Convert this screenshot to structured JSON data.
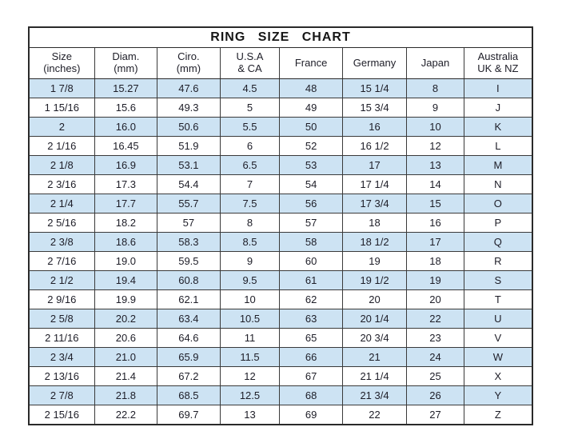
{
  "colors": {
    "row_highlight": "#cde3f3",
    "row_plain": "#ffffff",
    "border": "#2a2a2a",
    "text": "#1d1d27"
  },
  "chart_data": {
    "type": "table",
    "title": "RING SIZE CHART",
    "columns": [
      {
        "label": "Size",
        "sublabel": "(inches)"
      },
      {
        "label": "Diam.",
        "sublabel": "(mm)"
      },
      {
        "label": "Ciro.",
        "sublabel": "(mm)"
      },
      {
        "label": "U.S.A",
        "sublabel": "& CA"
      },
      {
        "label": "France",
        "sublabel": ""
      },
      {
        "label": "Germany",
        "sublabel": ""
      },
      {
        "label": "Japan",
        "sublabel": ""
      },
      {
        "label": "Australia",
        "sublabel": "UK & NZ"
      }
    ],
    "rows": [
      [
        "1 7/8",
        "15.27",
        "47.6",
        "4.5",
        "48",
        "15 1/4",
        "8",
        "I"
      ],
      [
        "1 15/16",
        "15.6",
        "49.3",
        "5",
        "49",
        "15 3/4",
        "9",
        "J"
      ],
      [
        "2",
        "16.0",
        "50.6",
        "5.5",
        "50",
        "16",
        "10",
        "K"
      ],
      [
        "2 1/16",
        "16.45",
        "51.9",
        "6",
        "52",
        "16 1/2",
        "12",
        "L"
      ],
      [
        "2 1/8",
        "16.9",
        "53.1",
        "6.5",
        "53",
        "17",
        "13",
        "M"
      ],
      [
        "2 3/16",
        "17.3",
        "54.4",
        "7",
        "54",
        "17 1/4",
        "14",
        "N"
      ],
      [
        "2 1/4",
        "17.7",
        "55.7",
        "7.5",
        "56",
        "17 3/4",
        "15",
        "O"
      ],
      [
        "2 5/16",
        "18.2",
        "57",
        "8",
        "57",
        "18",
        "16",
        "P"
      ],
      [
        "2 3/8",
        "18.6",
        "58.3",
        "8.5",
        "58",
        "18 1/2",
        "17",
        "Q"
      ],
      [
        "2 7/16",
        "19.0",
        "59.5",
        "9",
        "60",
        "19",
        "18",
        "R"
      ],
      [
        "2 1/2",
        "19.4",
        "60.8",
        "9.5",
        "61",
        "19 1/2",
        "19",
        "S"
      ],
      [
        "2 9/16",
        "19.9",
        "62.1",
        "10",
        "62",
        "20",
        "20",
        "T"
      ],
      [
        "2 5/8",
        "20.2",
        "63.4",
        "10.5",
        "63",
        "20 1/4",
        "22",
        "U"
      ],
      [
        "2 11/16",
        "20.6",
        "64.6",
        "11",
        "65",
        "20 3/4",
        "23",
        "V"
      ],
      [
        "2 3/4",
        "21.0",
        "65.9",
        "11.5",
        "66",
        "21",
        "24",
        "W"
      ],
      [
        "2 13/16",
        "21.4",
        "67.2",
        "12",
        "67",
        "21 1/4",
        "25",
        "X"
      ],
      [
        "2 7/8",
        "21.8",
        "68.5",
        "12.5",
        "68",
        "21 3/4",
        "26",
        "Y"
      ],
      [
        "2 15/16",
        "22.2",
        "69.7",
        "13",
        "69",
        "22",
        "27",
        "Z"
      ]
    ]
  }
}
